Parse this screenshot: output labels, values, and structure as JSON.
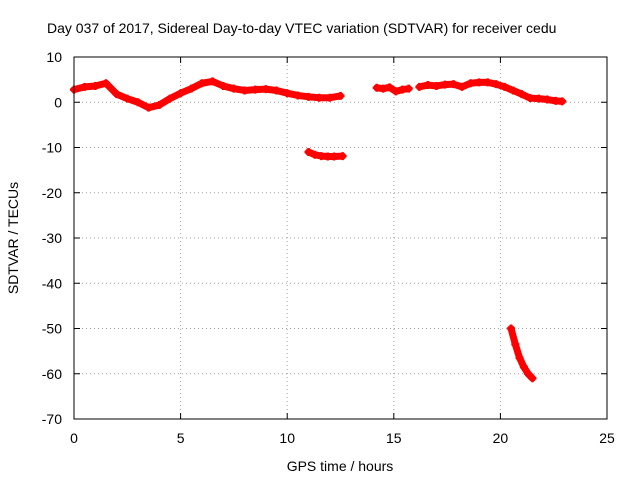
{
  "chart_data": {
    "type": "scatter",
    "title": "Day 037 of 2017, Sidereal Day-to-day VTEC variation (SDTVAR) for receiver cedu",
    "xlabel": "GPS time / hours",
    "ylabel": "SDTVAR / TECUs",
    "xlim": [
      0,
      25
    ],
    "ylim": [
      -70,
      10
    ],
    "xticks": [
      "0",
      "5",
      "10",
      "15",
      "20",
      "25"
    ],
    "yticks": [
      "10",
      "0",
      "-10",
      "-20",
      "-30",
      "-40",
      "-50",
      "-60",
      "-70"
    ],
    "grid": true,
    "marker": "plus",
    "color": "#ff0000",
    "series": [
      {
        "name": "segment-1",
        "x": [
          0,
          0.5,
          1.0,
          1.5,
          2.0,
          2.5,
          3.0,
          3.5,
          4.0,
          4.5,
          5.0,
          5.5,
          6.0,
          6.5,
          7.0,
          7.5,
          8.0,
          8.5,
          9.0,
          9.5,
          10.0,
          10.5,
          11.0,
          11.5,
          12.0,
          12.5
        ],
        "y": [
          2.8,
          3.4,
          3.6,
          4.2,
          1.8,
          0.8,
          0.0,
          -1.2,
          -0.6,
          0.8,
          2.0,
          3.0,
          4.2,
          4.6,
          3.6,
          3.0,
          2.6,
          2.8,
          2.9,
          2.6,
          2.0,
          1.5,
          1.2,
          1.0,
          1.0,
          1.4
        ]
      },
      {
        "name": "segment-2",
        "x": [
          11.0,
          11.3,
          11.6,
          11.9,
          12.2,
          12.6
        ],
        "y": [
          -11.0,
          -11.6,
          -11.9,
          -12.0,
          -12.0,
          -11.9
        ]
      },
      {
        "name": "segment-3",
        "x": [
          14.2,
          14.5,
          14.8,
          15.1,
          15.4,
          15.7
        ],
        "y": [
          3.2,
          3.0,
          3.3,
          2.4,
          2.8,
          3.0
        ]
      },
      {
        "name": "segment-4",
        "x": [
          16.2,
          16.6,
          17.0,
          17.4,
          17.8,
          18.2,
          18.6,
          19.0,
          19.4,
          19.8,
          20.2,
          20.6,
          21.0,
          21.4,
          21.8,
          22.2,
          22.6,
          22.9
        ],
        "y": [
          3.4,
          3.8,
          3.6,
          3.9,
          4.0,
          3.4,
          4.2,
          4.4,
          4.4,
          4.0,
          3.4,
          2.6,
          1.8,
          0.9,
          0.8,
          0.6,
          0.3,
          0.2
        ]
      },
      {
        "name": "segment-5",
        "x": [
          20.5,
          20.7,
          20.9,
          21.1,
          21.3,
          21.5
        ],
        "y": [
          -50.0,
          -53.5,
          -56.5,
          -58.5,
          -60.0,
          -61.0
        ]
      }
    ]
  }
}
